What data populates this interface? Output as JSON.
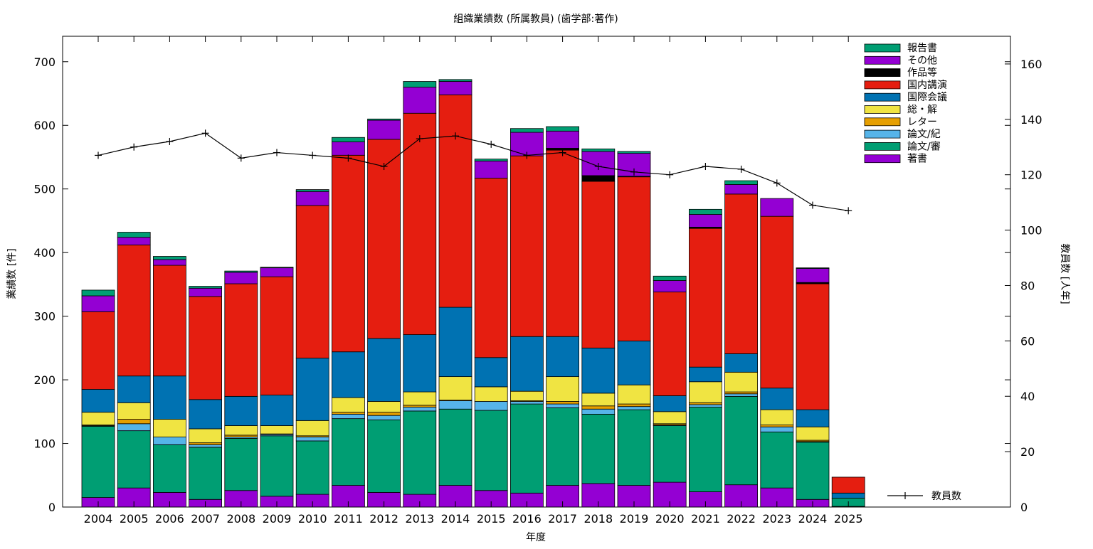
{
  "chart_data": {
    "type": "bar",
    "stacked": true,
    "title": "組織業績数 (所属教員) (歯学部:著作)",
    "xlabel": "年度",
    "ylabel": "業績数 [件]",
    "y2label": "教員数 [人年]",
    "ylim": [
      0,
      740
    ],
    "y2lim": [
      0,
      170
    ],
    "yticks": [
      "0",
      "100",
      "200",
      "300",
      "400",
      "500",
      "600",
      "700"
    ],
    "y2ticks": [
      "0",
      "20",
      "40",
      "60",
      "80",
      "100",
      "120",
      "140",
      "160"
    ],
    "grid": false,
    "legend_position": "top-right",
    "categories": [
      "2004",
      "2005",
      "2006",
      "2007",
      "2008",
      "2009",
      "2010",
      "2011",
      "2012",
      "2013",
      "2014",
      "2015",
      "2016",
      "2017",
      "2018",
      "2019",
      "2020",
      "2021",
      "2022",
      "2023",
      "2024",
      "2025"
    ],
    "series": [
      {
        "name": "著書",
        "color": "#9400d3",
        "values": [
          15,
          30,
          23,
          12,
          26,
          17,
          20,
          34,
          23,
          20,
          34,
          26,
          22,
          34,
          37,
          34,
          39,
          24,
          35,
          30,
          12,
          1
        ]
      },
      {
        "name": "論文/審",
        "color": "#009e73",
        "values": [
          112,
          90,
          75,
          82,
          82,
          95,
          84,
          105,
          114,
          131,
          120,
          126,
          140,
          122,
          109,
          119,
          89,
          133,
          139,
          88,
          90,
          13
        ]
      },
      {
        "name": "論文/紀",
        "color": "#56b4e9",
        "values": [
          1,
          11,
          12,
          4,
          2,
          2,
          6,
          7,
          7,
          6,
          13,
          14,
          4,
          6,
          8,
          5,
          1,
          4,
          4,
          8,
          1,
          0
        ]
      },
      {
        "name": "レター",
        "color": "#e69f00",
        "values": [
          1,
          7,
          0,
          3,
          3,
          1,
          2,
          3,
          5,
          3,
          1,
          0,
          1,
          4,
          5,
          4,
          2,
          3,
          3,
          3,
          2,
          0
        ]
      },
      {
        "name": "総・解",
        "color": "#f0e442",
        "values": [
          20,
          26,
          28,
          22,
          15,
          13,
          24,
          23,
          17,
          21,
          37,
          23,
          15,
          39,
          20,
          30,
          19,
          33,
          31,
          24,
          21,
          0
        ]
      },
      {
        "name": "国際会議",
        "color": "#0072b2",
        "values": [
          36,
          42,
          68,
          46,
          46,
          48,
          98,
          72,
          99,
          90,
          109,
          46,
          86,
          63,
          71,
          69,
          25,
          23,
          29,
          34,
          27,
          8
        ]
      },
      {
        "name": "国内講演",
        "color": "#e51e10",
        "values": [
          122,
          206,
          174,
          162,
          177,
          186,
          240,
          309,
          313,
          348,
          334,
          282,
          284,
          293,
          262,
          258,
          163,
          218,
          251,
          270,
          198,
          25
        ]
      },
      {
        "name": "作品等",
        "color": "#000000",
        "values": [
          0,
          0,
          0,
          0,
          0,
          0,
          0,
          0,
          0,
          0,
          0,
          0,
          0,
          3,
          9,
          1,
          0,
          2,
          0,
          0,
          2,
          0
        ]
      },
      {
        "name": "その他",
        "color": "#9400d3",
        "values": [
          25,
          12,
          9,
          13,
          18,
          14,
          22,
          21,
          30,
          41,
          21,
          27,
          37,
          27,
          38,
          36,
          18,
          20,
          15,
          28,
          22,
          0
        ]
      },
      {
        "name": "報告書",
        "color": "#009e73",
        "values": [
          9,
          8,
          5,
          3,
          2,
          1,
          3,
          7,
          2,
          9,
          3,
          3,
          6,
          7,
          4,
          3,
          7,
          8,
          6,
          0,
          1,
          0
        ]
      }
    ],
    "line_series": {
      "name": "教員数",
      "axis": "y2",
      "color": "#000000",
      "values": [
        127,
        130,
        132,
        135,
        126,
        128,
        127,
        126,
        123,
        133,
        134,
        131,
        127,
        128,
        123,
        121,
        120,
        123,
        122,
        117,
        109,
        107
      ]
    }
  }
}
